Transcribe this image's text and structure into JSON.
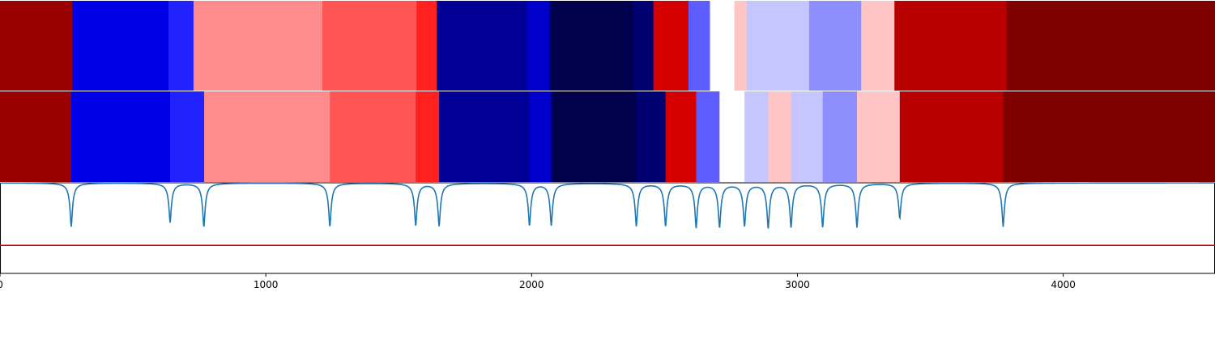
{
  "chart_data": [
    {
      "type": "heatmap",
      "panel": "top-band",
      "x": [
        [
          0,
          272
        ],
        [
          272,
          634
        ],
        [
          634,
          728
        ],
        [
          728,
          1213
        ],
        [
          1213,
          1567
        ],
        [
          1567,
          1643
        ],
        [
          1643,
          1983
        ],
        [
          1983,
          2068
        ],
        [
          2068,
          2383
        ],
        [
          2383,
          2458
        ],
        [
          2458,
          2590
        ],
        [
          2590,
          2671
        ],
        [
          2671,
          2763
        ],
        [
          2763,
          2810
        ],
        [
          2810,
          3044
        ],
        [
          3044,
          3240
        ],
        [
          3240,
          3365
        ],
        [
          3365,
          3787
        ],
        [
          3787,
          4571
        ]
      ],
      "colors": [
        "#990000",
        "#0000e8",
        "#2222ff",
        "#ff8c8c",
        "#ff5555",
        "#ff2020",
        "#000096",
        "#0000cc",
        "#00004c",
        "#000070",
        "#d40000",
        "#5c5cff",
        "#ffffff",
        "#ffc4c4",
        "#c6c6ff",
        "#8e8eff",
        "#ffc4c4",
        "#b80000",
        "#800000"
      ]
    },
    {
      "type": "heatmap",
      "panel": "bottom-band",
      "x": [
        [
          0,
          268
        ],
        [
          268,
          640
        ],
        [
          640,
          768
        ],
        [
          768,
          1241
        ],
        [
          1241,
          1564
        ],
        [
          1564,
          1652
        ],
        [
          1652,
          1992
        ],
        [
          1992,
          2074
        ],
        [
          2074,
          2394
        ],
        [
          2394,
          2504
        ],
        [
          2504,
          2619
        ],
        [
          2619,
          2707
        ],
        [
          2707,
          2801
        ],
        [
          2801,
          2890
        ],
        [
          2890,
          2976
        ],
        [
          2976,
          3095
        ],
        [
          3095,
          3224
        ],
        [
          3224,
          3385
        ],
        [
          3385,
          3774
        ],
        [
          3774,
          4571
        ]
      ],
      "colors": [
        "#990000",
        "#0000e8",
        "#2222ff",
        "#ff8c8c",
        "#ff5555",
        "#ff2020",
        "#000096",
        "#0000cc",
        "#00004c",
        "#000070",
        "#d40000",
        "#5c5cff",
        "#ffffff",
        "#c6c6ff",
        "#ffc4c4",
        "#c6c6ff",
        "#8e8eff",
        "#ffc4c4",
        "#b80000",
        "#800000"
      ]
    },
    {
      "type": "line",
      "panel": "signal",
      "baseline": 1.0,
      "ylim": [
        -1.0,
        1.0
      ],
      "xlim": [
        0,
        4571
      ],
      "dips": [
        {
          "x": 268,
          "depth": 0.97
        },
        {
          "x": 640,
          "depth": 0.87
        },
        {
          "x": 767,
          "depth": 0.98
        },
        {
          "x": 1241,
          "depth": 0.97
        },
        {
          "x": 1564,
          "depth": 0.94
        },
        {
          "x": 1652,
          "depth": 0.95
        },
        {
          "x": 1992,
          "depth": 0.94
        },
        {
          "x": 2074,
          "depth": 0.93
        },
        {
          "x": 2394,
          "depth": 0.95
        },
        {
          "x": 2504,
          "depth": 0.95
        },
        {
          "x": 2619,
          "depth": 0.97
        },
        {
          "x": 2707,
          "depth": 0.97
        },
        {
          "x": 2801,
          "depth": 0.94
        },
        {
          "x": 2890,
          "depth": 0.98
        },
        {
          "x": 2976,
          "depth": 0.96
        },
        {
          "x": 3095,
          "depth": 0.97
        },
        {
          "x": 3224,
          "depth": 0.97
        },
        {
          "x": 3385,
          "depth": 0.78
        },
        {
          "x": 3774,
          "depth": 0.97
        }
      ],
      "threshold": {
        "y": -0.38,
        "color": "#e00000"
      },
      "series_color": "#1f77b4"
    }
  ],
  "axis": {
    "xlim": [
      0,
      4571
    ],
    "ticks": [
      {
        "value": 0,
        "label": "0"
      },
      {
        "value": 1000,
        "label": "1000"
      },
      {
        "value": 2000,
        "label": "2000"
      },
      {
        "value": 3000,
        "label": "3000"
      },
      {
        "value": 4000,
        "label": "4000"
      }
    ]
  }
}
